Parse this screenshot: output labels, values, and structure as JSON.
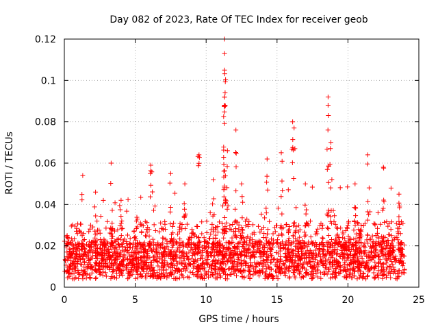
{
  "chart_data": {
    "type": "scatter",
    "title": "Day 082 of 2023, Rate Of TEC Index for receiver geob",
    "xlabel": "GPS time / hours",
    "ylabel": "ROTI / TECUs",
    "xlim": [
      0,
      25
    ],
    "ylim": [
      0,
      0.12
    ],
    "xticks": [
      0,
      5,
      10,
      15,
      20,
      25
    ],
    "yticks": [
      0,
      0.02,
      0.04,
      0.06,
      0.08,
      0.1,
      0.12
    ],
    "xtick_labels": [
      "0",
      "5",
      "10",
      "15",
      "20",
      "25"
    ],
    "ytick_labels": [
      "0",
      "0.02",
      "0.04",
      "0.06",
      "0.08",
      "0.1",
      "0.12"
    ],
    "grid": true,
    "marker": "+",
    "color": "#ff0000",
    "x_range_of_data": [
      0,
      24
    ],
    "peaks": [
      {
        "x": 0.2,
        "y": 0.025
      },
      {
        "x": 1.3,
        "y": 0.054
      },
      {
        "x": 2.2,
        "y": 0.046
      },
      {
        "x": 3.3,
        "y": 0.06
      },
      {
        "x": 4.0,
        "y": 0.042
      },
      {
        "x": 6.1,
        "y": 0.059
      },
      {
        "x": 7.5,
        "y": 0.055
      },
      {
        "x": 8.5,
        "y": 0.05
      },
      {
        "x": 9.5,
        "y": 0.064
      },
      {
        "x": 10.5,
        "y": 0.052
      },
      {
        "x": 11.3,
        "y": 0.12
      },
      {
        "x": 11.3,
        "y": 0.113
      },
      {
        "x": 11.3,
        "y": 0.105
      },
      {
        "x": 11.3,
        "y": 0.092
      },
      {
        "x": 11.3,
        "y": 0.088
      },
      {
        "x": 12.1,
        "y": 0.076
      },
      {
        "x": 11.5,
        "y": 0.066
      },
      {
        "x": 12.5,
        "y": 0.05
      },
      {
        "x": 14.3,
        "y": 0.062
      },
      {
        "x": 15.3,
        "y": 0.065
      },
      {
        "x": 16.1,
        "y": 0.08
      },
      {
        "x": 16.2,
        "y": 0.077
      },
      {
        "x": 17.0,
        "y": 0.05
      },
      {
        "x": 18.6,
        "y": 0.092
      },
      {
        "x": 18.6,
        "y": 0.088
      },
      {
        "x": 18.8,
        "y": 0.07
      },
      {
        "x": 20.5,
        "y": 0.05
      },
      {
        "x": 21.4,
        "y": 0.064
      },
      {
        "x": 22.5,
        "y": 0.058
      },
      {
        "x": 23.6,
        "y": 0.045
      }
    ]
  }
}
